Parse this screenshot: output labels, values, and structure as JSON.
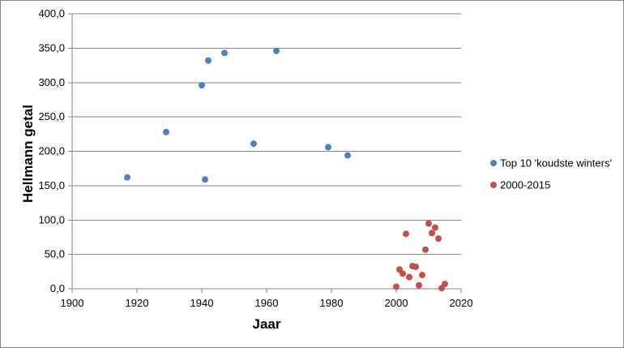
{
  "chart_data": {
    "type": "scatter",
    "xlabel": "Jaar",
    "ylabel": "Hellmann getal",
    "xlim": [
      1900,
      2020
    ],
    "ylim": [
      0,
      400
    ],
    "x_ticks": [
      "1900",
      "1920",
      "1940",
      "1960",
      "1980",
      "2000",
      "2020"
    ],
    "y_ticks": [
      "0,0",
      "50,0",
      "100,0",
      "150,0",
      "200,0",
      "250,0",
      "300,0",
      "350,0",
      "400,0"
    ],
    "grid": "horizontal",
    "legend_position": "right",
    "series": [
      {
        "name": "Top 10 'koudste winters'",
        "color": "#4f81bd",
        "points": [
          [
            1917,
            162
          ],
          [
            1929,
            228
          ],
          [
            1940,
            296
          ],
          [
            1941,
            159
          ],
          [
            1942,
            332
          ],
          [
            1947,
            343
          ],
          [
            1956,
            211
          ],
          [
            1963,
            346
          ],
          [
            1979,
            206
          ],
          [
            1985,
            194
          ]
        ]
      },
      {
        "name": "2000-2015",
        "color": "#c0504d",
        "points": [
          [
            2000,
            3
          ],
          [
            2001,
            28
          ],
          [
            2002,
            22
          ],
          [
            2003,
            80
          ],
          [
            2004,
            17
          ],
          [
            2005,
            33
          ],
          [
            2006,
            32
          ],
          [
            2007,
            5
          ],
          [
            2008,
            20
          ],
          [
            2009,
            57
          ],
          [
            2010,
            95
          ],
          [
            2011,
            81
          ],
          [
            2012,
            89
          ],
          [
            2013,
            73
          ],
          [
            2014,
            1
          ],
          [
            2015,
            7
          ]
        ]
      }
    ]
  }
}
